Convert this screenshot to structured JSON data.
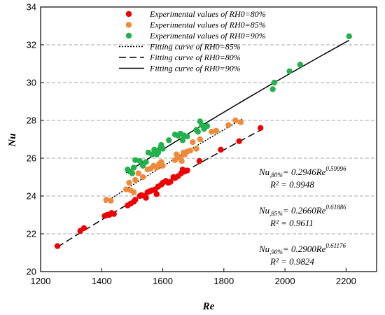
{
  "chart_data": {
    "type": "scatter",
    "xlabel": "Re",
    "ylabel": "Nu",
    "xlim": [
      1200,
      2300
    ],
    "ylim": [
      20,
      34
    ],
    "x_ticks": [
      "1200",
      "1400",
      "1600",
      "1800",
      "2000",
      "2200"
    ],
    "y_ticks": [
      "20",
      "22",
      "24",
      "26",
      "28",
      "30",
      "32",
      "34"
    ],
    "grid": "horizontal dashed",
    "legend_position": "top-left",
    "series": [
      {
        "name": "Experimental values of RH0=80%",
        "color": "#ee0000",
        "points": [
          [
            1255,
            21.35
          ],
          [
            1330,
            22.15
          ],
          [
            1342,
            22.3
          ],
          [
            1410,
            22.95
          ],
          [
            1418,
            23.0
          ],
          [
            1425,
            23.0
          ],
          [
            1432,
            23.1
          ],
          [
            1440,
            23.05
          ],
          [
            1485,
            23.5
          ],
          [
            1495,
            23.6
          ],
          [
            1505,
            23.7
          ],
          [
            1510,
            23.8
          ],
          [
            1525,
            24.0
          ],
          [
            1530,
            24.05
          ],
          [
            1540,
            24.0
          ],
          [
            1545,
            23.9
          ],
          [
            1550,
            24.2
          ],
          [
            1558,
            24.25
          ],
          [
            1565,
            24.3
          ],
          [
            1575,
            24.35
          ],
          [
            1580,
            24.1
          ],
          [
            1585,
            24.5
          ],
          [
            1595,
            24.6
          ],
          [
            1600,
            24.7
          ],
          [
            1610,
            24.8
          ],
          [
            1618,
            24.7
          ],
          [
            1625,
            24.75
          ],
          [
            1635,
            25.0
          ],
          [
            1640,
            24.95
          ],
          [
            1650,
            25.05
          ],
          [
            1660,
            25.2
          ],
          [
            1665,
            25.4
          ],
          [
            1672,
            25.3
          ],
          [
            1680,
            25.35
          ],
          [
            1720,
            25.85
          ],
          [
            1790,
            26.45
          ],
          [
            1850,
            26.9
          ],
          [
            1920,
            27.6
          ]
        ]
      },
      {
        "name": "Experimental values of RH0=85%",
        "color": "#ef8a3a",
        "points": [
          [
            1415,
            23.8
          ],
          [
            1430,
            23.75
          ],
          [
            1480,
            24.35
          ],
          [
            1490,
            24.7
          ],
          [
            1495,
            24.3
          ],
          [
            1505,
            24.2
          ],
          [
            1510,
            24.85
          ],
          [
            1520,
            25.2
          ],
          [
            1535,
            25.0
          ],
          [
            1550,
            25.4
          ],
          [
            1560,
            25.45
          ],
          [
            1570,
            25.6
          ],
          [
            1580,
            25.5
          ],
          [
            1588,
            25.7
          ],
          [
            1595,
            25.8
          ],
          [
            1600,
            25.6
          ],
          [
            1640,
            25.9
          ],
          [
            1645,
            26.2
          ],
          [
            1650,
            26.1
          ],
          [
            1658,
            26.0
          ],
          [
            1662,
            25.85
          ],
          [
            1668,
            26.3
          ],
          [
            1672,
            26.2
          ],
          [
            1680,
            26.35
          ],
          [
            1690,
            26.4
          ],
          [
            1698,
            26.85
          ],
          [
            1710,
            26.5
          ],
          [
            1722,
            27.0
          ],
          [
            1760,
            27.4
          ],
          [
            1775,
            27.45
          ],
          [
            1815,
            27.75
          ],
          [
            1838,
            28.0
          ],
          [
            1855,
            27.9
          ]
        ]
      },
      {
        "name": "Experimental values of RH0=90%",
        "color": "#22b14c",
        "points": [
          [
            1485,
            25.4
          ],
          [
            1492,
            25.3
          ],
          [
            1500,
            25.2
          ],
          [
            1505,
            25.5
          ],
          [
            1510,
            25.9
          ],
          [
            1525,
            25.85
          ],
          [
            1535,
            25.6
          ],
          [
            1545,
            25.8
          ],
          [
            1553,
            26.3
          ],
          [
            1565,
            26.2
          ],
          [
            1572,
            26.45
          ],
          [
            1580,
            26.2
          ],
          [
            1585,
            26.3
          ],
          [
            1590,
            26.5
          ],
          [
            1595,
            26.7
          ],
          [
            1600,
            26.5
          ],
          [
            1620,
            26.95
          ],
          [
            1640,
            27.25
          ],
          [
            1650,
            27.2
          ],
          [
            1658,
            27.3
          ],
          [
            1665,
            26.95
          ],
          [
            1670,
            27.2
          ],
          [
            1680,
            27.15
          ],
          [
            1710,
            27.5
          ],
          [
            1715,
            27.4
          ],
          [
            1722,
            27.95
          ],
          [
            1728,
            27.75
          ],
          [
            1735,
            27.55
          ],
          [
            1745,
            27.7
          ],
          [
            1960,
            29.65
          ],
          [
            1965,
            30.0
          ],
          [
            2015,
            30.6
          ],
          [
            2050,
            30.95
          ],
          [
            2210,
            32.45
          ]
        ]
      }
    ],
    "fit_curves": [
      {
        "name": "Fitting curve of RH0=85%",
        "style": "dotted",
        "color": "#000000",
        "a": 0.266,
        "b": 0.61886,
        "x_range": [
          1410,
          1860
        ]
      },
      {
        "name": "Fitting curve of RH0=80%",
        "style": "dashed",
        "color": "#000000",
        "a": 0.2946,
        "b": 0.59996,
        "x_range": [
          1255,
          1920
        ]
      },
      {
        "name": "Fitting curve of RH0=90%",
        "style": "solid",
        "color": "#000000",
        "a": 0.29,
        "b": 0.61176,
        "x_range": [
          1480,
          2210
        ]
      }
    ],
    "annotations": [
      {
        "lhs": "Nu",
        "sub": ",80%",
        "rhs": "= 0.2946Re",
        "sup": "0.59996",
        "r2": "R² = 0.9948"
      },
      {
        "lhs": "Nu",
        "sub": ",85%",
        "rhs": "= 0.2660Re",
        "sup": "0.61886",
        "r2": "R² = 0.9611"
      },
      {
        "lhs": "Nu",
        "sub": ",90%",
        "rhs": "= 0.2900Re",
        "sup": "0.61176",
        "r2": "R² = 0.9824"
      }
    ]
  }
}
